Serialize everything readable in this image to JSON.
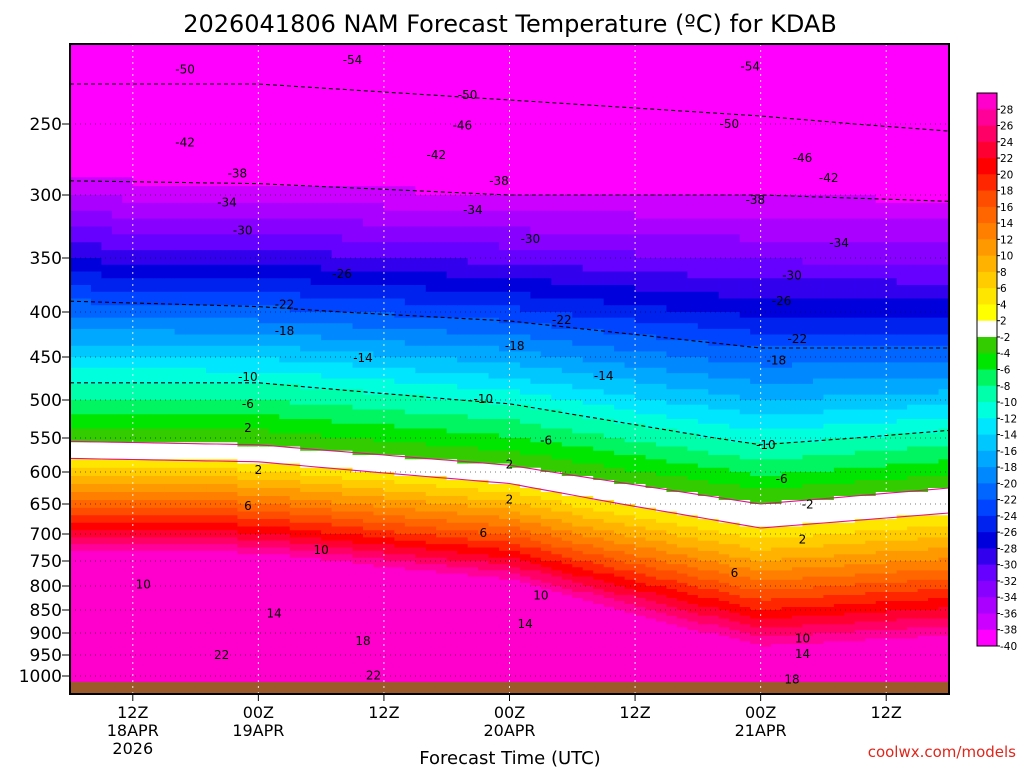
{
  "page": {
    "credit": "coolwx.com/models"
  },
  "chart_data": {
    "type": "heatmap",
    "title": "2026041806 NAM Forecast Temperature (ºC) for KDAB",
    "xlabel": "Forecast Time (UTC)",
    "ylabel": "",
    "x_range_hours": [
      0,
      84
    ],
    "y_range_hPa": [
      1025,
      200
    ],
    "y_ticks": [
      250,
      300,
      350,
      400,
      450,
      500,
      550,
      600,
      650,
      700,
      750,
      800,
      850,
      900,
      950,
      1000
    ],
    "x_ticks": [
      {
        "hour": 6,
        "lines": [
          "12Z",
          "18APR",
          "2026"
        ]
      },
      {
        "hour": 18,
        "lines": [
          "00Z",
          "19APR"
        ]
      },
      {
        "hour": 30,
        "lines": [
          "12Z"
        ]
      },
      {
        "hour": 42,
        "lines": [
          "00Z",
          "20APR"
        ]
      },
      {
        "hour": 54,
        "lines": [
          "12Z"
        ]
      },
      {
        "hour": 66,
        "lines": [
          "00Z",
          "21APR"
        ]
      },
      {
        "hour": 78,
        "lines": [
          "12Z"
        ]
      }
    ],
    "colorbar_levels": [
      28,
      26,
      24,
      22,
      20,
      18,
      16,
      14,
      12,
      10,
      8,
      6,
      4,
      2,
      -2,
      -4,
      -6,
      -8,
      -10,
      -12,
      -14,
      -16,
      -18,
      -20,
      -22,
      -24,
      -26,
      -28,
      -30,
      -32,
      -34,
      -36,
      -38,
      -40
    ],
    "colorbar_colors": [
      "#ff00cc",
      "#ff0099",
      "#ff0066",
      "#ff0033",
      "#ff0000",
      "#ff2600",
      "#ff4d00",
      "#ff6600",
      "#ff8000",
      "#ff9900",
      "#ffb300",
      "#ffcc00",
      "#ffe600",
      "#ffff00",
      "#ffffff",
      "#33cc00",
      "#00e600",
      "#00f560",
      "#00ffaa",
      "#00ffdd",
      "#00e6ff",
      "#00c8ff",
      "#00a8ff",
      "#0088ff",
      "#0066ff",
      "#0044ff",
      "#0022ee",
      "#0000dd",
      "#3300ee",
      "#6600ff",
      "#8800ff",
      "#aa00ff",
      "#cc00ff",
      "#ff00ff"
    ],
    "temperature_profile": {
      "hours": [
        0,
        18,
        42,
        66,
        84
      ],
      "series": [
        {
          "name": "2 °C",
          "pressure_hPa": [
            580,
            585,
            618,
            690,
            665
          ]
        },
        {
          "name": "-2 °C",
          "pressure_hPa": [
            555,
            560,
            590,
            650,
            625
          ]
        },
        {
          "name": "-10 °C",
          "pressure_hPa": [
            480,
            480,
            505,
            560,
            540
          ]
        },
        {
          "name": "-22 °C",
          "pressure_hPa": [
            390,
            395,
            410,
            440,
            440
          ]
        },
        {
          "name": "-38 °C",
          "pressure_hPa": [
            290,
            292,
            300,
            300,
            305
          ]
        },
        {
          "name": "-50 °C",
          "pressure_hPa": [
            225,
            225,
            235,
            245,
            255
          ]
        }
      ]
    },
    "contour_labels": [
      {
        "text": "-54",
        "hour": 27,
        "pressure": 210
      },
      {
        "text": "-54",
        "hour": 65,
        "pressure": 214
      },
      {
        "text": "-50",
        "hour": 11,
        "pressure": 216
      },
      {
        "text": "-50",
        "hour": 38,
        "pressure": 232
      },
      {
        "text": "-50",
        "hour": 63,
        "pressure": 250
      },
      {
        "text": "-46",
        "hour": 37.5,
        "pressure": 251
      },
      {
        "text": "-46",
        "hour": 70,
        "pressure": 274
      },
      {
        "text": "-42",
        "hour": 11,
        "pressure": 263
      },
      {
        "text": "-42",
        "hour": 35,
        "pressure": 272
      },
      {
        "text": "-42",
        "hour": 72.5,
        "pressure": 288
      },
      {
        "text": "-38",
        "hour": 16,
        "pressure": 285
      },
      {
        "text": "-38",
        "hour": 41,
        "pressure": 290
      },
      {
        "text": "-38",
        "hour": 65.5,
        "pressure": 304
      },
      {
        "text": "-34",
        "hour": 15,
        "pressure": 306
      },
      {
        "text": "-34",
        "hour": 38.5,
        "pressure": 312
      },
      {
        "text": "-34",
        "hour": 73.5,
        "pressure": 338
      },
      {
        "text": "-30",
        "hour": 16.5,
        "pressure": 328
      },
      {
        "text": "-30",
        "hour": 44,
        "pressure": 335
      },
      {
        "text": "-30",
        "hour": 69,
        "pressure": 366
      },
      {
        "text": "-26",
        "hour": 26,
        "pressure": 365
      },
      {
        "text": "-26",
        "hour": 68,
        "pressure": 390
      },
      {
        "text": "-22",
        "hour": 20.5,
        "pressure": 393
      },
      {
        "text": "-22",
        "hour": 47,
        "pressure": 409
      },
      {
        "text": "-22",
        "hour": 69.5,
        "pressure": 430
      },
      {
        "text": "-18",
        "hour": 20.5,
        "pressure": 421
      },
      {
        "text": "-18",
        "hour": 42.5,
        "pressure": 438
      },
      {
        "text": "-18",
        "hour": 67.5,
        "pressure": 454
      },
      {
        "text": "-14",
        "hour": 28,
        "pressure": 451
      },
      {
        "text": "-14",
        "hour": 51,
        "pressure": 472
      },
      {
        "text": "-10",
        "hour": 17,
        "pressure": 473
      },
      {
        "text": "-10",
        "hour": 39.5,
        "pressure": 499
      },
      {
        "text": "-10",
        "hour": 66.5,
        "pressure": 560
      },
      {
        "text": "-6",
        "hour": 17,
        "pressure": 505
      },
      {
        "text": "-6",
        "hour": 45.5,
        "pressure": 554
      },
      {
        "text": "-6",
        "hour": 68,
        "pressure": 611
      },
      {
        "text": "-2",
        "hour": 70.5,
        "pressure": 651
      },
      {
        "text": "2",
        "hour": 17,
        "pressure": 537
      },
      {
        "text": "2",
        "hour": 18,
        "pressure": 597
      },
      {
        "text": "2",
        "hour": 42,
        "pressure": 589
      },
      {
        "text": "2",
        "hour": 42,
        "pressure": 643
      },
      {
        "text": "2",
        "hour": 70,
        "pressure": 710
      },
      {
        "text": "6",
        "hour": 17,
        "pressure": 653
      },
      {
        "text": "6",
        "hour": 39.5,
        "pressure": 698
      },
      {
        "text": "6",
        "hour": 63.5,
        "pressure": 774
      },
      {
        "text": "10",
        "hour": 24,
        "pressure": 730
      },
      {
        "text": "10",
        "hour": 7,
        "pressure": 797
      },
      {
        "text": "10",
        "hour": 45,
        "pressure": 820
      },
      {
        "text": "10",
        "hour": 70,
        "pressure": 913
      },
      {
        "text": "14",
        "hour": 19.5,
        "pressure": 858
      },
      {
        "text": "14",
        "hour": 43.5,
        "pressure": 880
      },
      {
        "text": "14",
        "hour": 70,
        "pressure": 948
      },
      {
        "text": "18",
        "hour": 28,
        "pressure": 918
      },
      {
        "text": "18",
        "hour": 69,
        "pressure": 1005
      },
      {
        "text": "22",
        "hour": 14.5,
        "pressure": 950
      },
      {
        "text": "22",
        "hour": 29,
        "pressure": 999
      }
    ]
  }
}
